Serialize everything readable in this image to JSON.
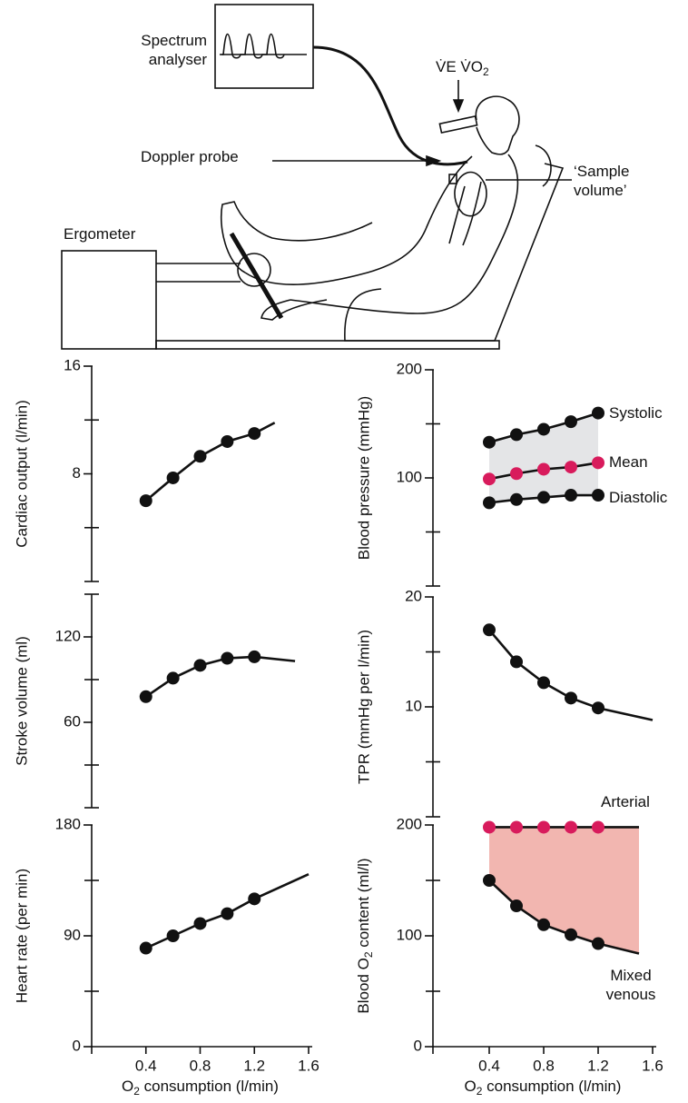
{
  "diagram": {
    "spectrum_label": "Spectrum analyser",
    "ventilation_label": [
      "V̇E V̇O",
      "2"
    ],
    "doppler_label": "Doppler probe",
    "sample_label": "‘Sample volume’",
    "ergometer_label": "Ergometer"
  },
  "chart_data": [
    {
      "type": "line",
      "y_label": "Cardiac output (l/min)",
      "xlim": [
        0,
        1.6
      ],
      "ylim": [
        0,
        16
      ],
      "yticks": [
        8,
        16
      ],
      "yminor_ticks": [
        0,
        4,
        12
      ],
      "series": [
        {
          "color": "#111111",
          "marker_color": "#111111",
          "x": [
            0.4,
            0.6,
            0.8,
            1.0,
            1.2,
            1.35
          ],
          "values": [
            6.0,
            7.7,
            9.3,
            10.4,
            11.0,
            11.8
          ],
          "markers": [
            true,
            true,
            true,
            true,
            true,
            false
          ]
        }
      ]
    },
    {
      "type": "line",
      "y_label": "Stroke volume (ml)",
      "xlim": [
        0,
        1.6
      ],
      "ylim": [
        0,
        150
      ],
      "yticks": [
        60,
        120
      ],
      "yminor_ticks": [
        0,
        30,
        90,
        150
      ],
      "series": [
        {
          "color": "#111111",
          "marker_color": "#111111",
          "x": [
            0.4,
            0.6,
            0.8,
            1.0,
            1.2,
            1.5
          ],
          "values": [
            78,
            91,
            100,
            105,
            106,
            103
          ],
          "markers": [
            true,
            true,
            true,
            true,
            true,
            false
          ]
        }
      ]
    },
    {
      "type": "line",
      "y_label": "Heart rate (per min)",
      "x_label": [
        "O",
        "2",
        " consumption (l/min)"
      ],
      "xlim": [
        0,
        1.6
      ],
      "xticks": [
        0.4,
        0.8,
        1.2,
        1.6
      ],
      "ylim": [
        0,
        180
      ],
      "yticks": [
        0,
        90,
        180
      ],
      "yminor_ticks": [
        45,
        135
      ],
      "series": [
        {
          "color": "#111111",
          "marker_color": "#111111",
          "x": [
            0.4,
            0.6,
            0.8,
            1.0,
            1.2,
            1.6
          ],
          "values": [
            80,
            90,
            100,
            108,
            120,
            140
          ],
          "markers": [
            true,
            true,
            true,
            true,
            true,
            false
          ]
        }
      ]
    },
    {
      "type": "line",
      "y_label": "Blood pressure (mmHg)",
      "xlim": [
        0,
        1.6
      ],
      "ylim": [
        0,
        200
      ],
      "yticks": [
        100,
        200
      ],
      "yminor_ticks": [
        0,
        50,
        150
      ],
      "fill_between": [
        0,
        2
      ],
      "fill_color": "#e4e5e7",
      "series": [
        {
          "name": "Systolic",
          "color": "#111111",
          "marker_color": "#111111",
          "x": [
            0.4,
            0.6,
            0.8,
            1.0,
            1.2
          ],
          "values": [
            133,
            140,
            145,
            152,
            160
          ],
          "markers": [
            true,
            true,
            true,
            true,
            true
          ]
        },
        {
          "name": "Mean",
          "color": "#111111",
          "marker_color": "#d81b5c",
          "x": [
            0.4,
            0.6,
            0.8,
            1.0,
            1.2
          ],
          "values": [
            99,
            104,
            108,
            110,
            114
          ],
          "markers": [
            true,
            true,
            true,
            true,
            true
          ]
        },
        {
          "name": "Diastolic",
          "color": "#111111",
          "marker_color": "#111111",
          "x": [
            0.4,
            0.6,
            0.8,
            1.0,
            1.2
          ],
          "values": [
            77,
            80,
            82,
            84,
            84
          ],
          "markers": [
            true,
            true,
            true,
            true,
            true
          ]
        }
      ]
    },
    {
      "type": "line",
      "y_label": "TPR (mmHg per l/min)",
      "xlim": [
        0,
        1.6
      ],
      "ylim": [
        0,
        20
      ],
      "yticks": [
        10,
        20
      ],
      "yminor_ticks": [
        0,
        5,
        15
      ],
      "series": [
        {
          "color": "#111111",
          "marker_color": "#111111",
          "x": [
            0.4,
            0.6,
            0.8,
            1.0,
            1.2,
            1.6
          ],
          "values": [
            17.0,
            14.1,
            12.2,
            10.8,
            9.9,
            8.8
          ],
          "markers": [
            true,
            true,
            true,
            true,
            true,
            false
          ]
        }
      ]
    },
    {
      "type": "line",
      "y_label": [
        "Blood O",
        "2",
        " content (ml/l)"
      ],
      "x_label": [
        "O",
        "2",
        " consumption (l/min)"
      ],
      "xlim": [
        0,
        1.6
      ],
      "xticks": [
        0.4,
        0.8,
        1.2,
        1.6
      ],
      "ylim": [
        0,
        200
      ],
      "yticks": [
        0,
        100,
        200
      ],
      "yminor_ticks": [
        50,
        150
      ],
      "fill_between": [
        0,
        1
      ],
      "fill_color": "#f2b6b0",
      "series": [
        {
          "name": "Arterial",
          "color": "#111111",
          "marker_color": "#d81b5c",
          "x": [
            0.4,
            0.6,
            0.8,
            1.0,
            1.2,
            1.5
          ],
          "values": [
            198,
            198,
            198,
            198,
            198,
            198
          ],
          "markers": [
            true,
            true,
            true,
            true,
            true,
            false
          ]
        },
        {
          "name": "Mixed venous",
          "color": "#111111",
          "marker_color": "#111111",
          "x": [
            0.4,
            0.6,
            0.8,
            1.0,
            1.2,
            1.5
          ],
          "values": [
            150,
            127,
            110,
            101,
            93,
            84
          ],
          "markers": [
            true,
            true,
            true,
            true,
            true,
            false
          ]
        }
      ]
    }
  ]
}
